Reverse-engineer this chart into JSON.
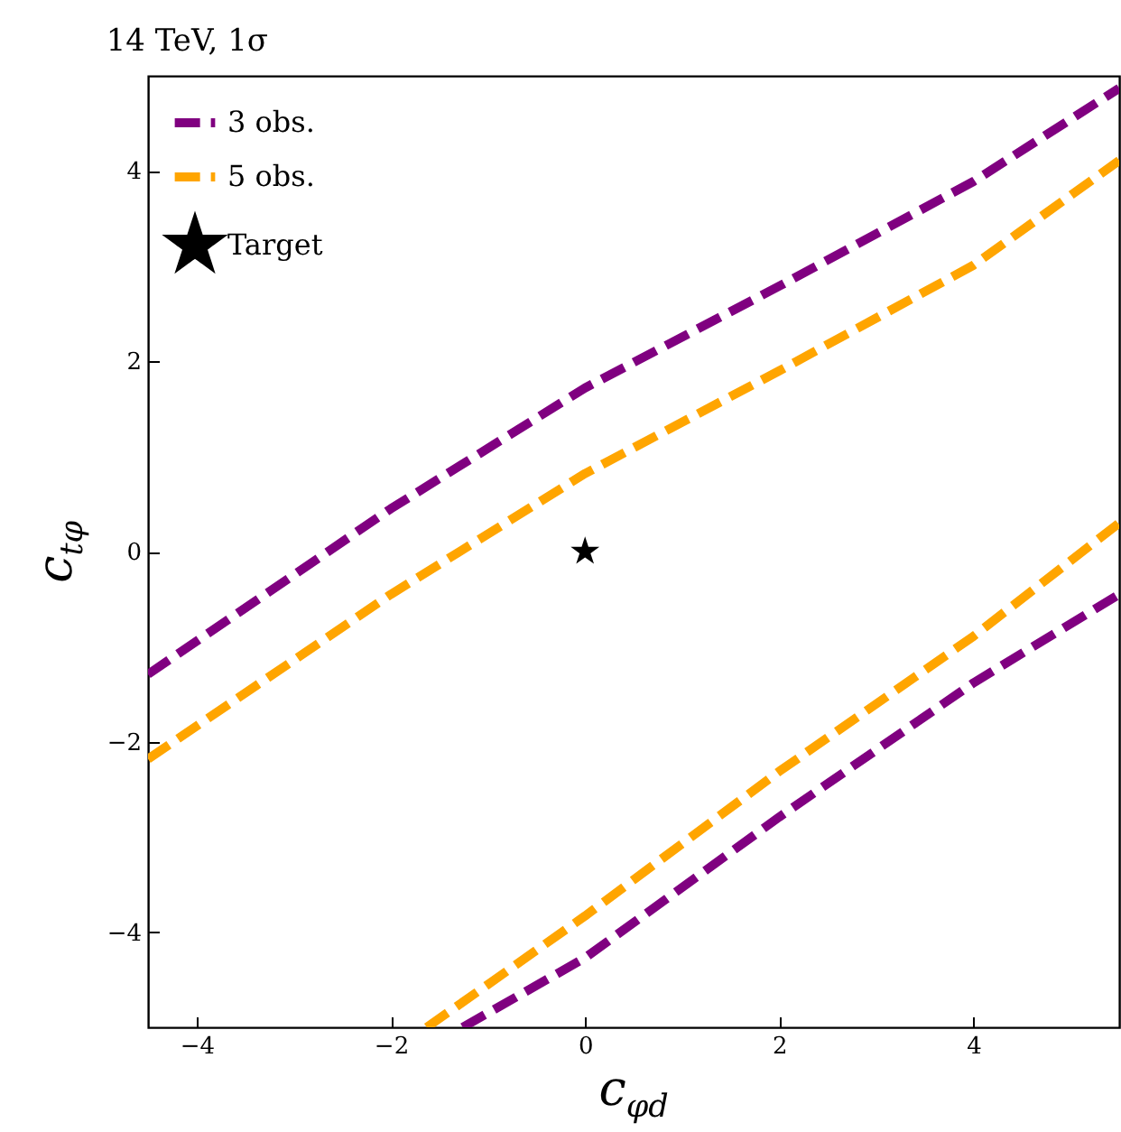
{
  "chart_data": {
    "type": "line",
    "title": "14 TeV, 1σ",
    "xlabel": "c$_{φd}$",
    "ylabel": "c$_{tφ}$",
    "xlim": [
      -4.5,
      5.5
    ],
    "xticks": [
      -4,
      -2,
      0,
      2,
      4
    ],
    "ylim": [
      -5,
      5
    ],
    "yticks": [
      -4,
      -2,
      0,
      2,
      4
    ],
    "grid": false,
    "legend": "top left",
    "line_style": "dashed",
    "series": [
      {
        "name": "3 obs.",
        "color": "#800080",
        "x": [
          -4.5,
          -2,
          0,
          2,
          4,
          5.5
        ],
        "values": [
          -1.29,
          0.45,
          1.72,
          2.79,
          3.89,
          4.87
        ]
      },
      {
        "name": "5 obs.",
        "color": "#ffa500",
        "x": [
          -4.5,
          -2,
          0,
          2,
          4,
          5.5
        ],
        "values": [
          -2.18,
          -0.45,
          0.82,
          1.9,
          3.01,
          4.11
        ]
      },
      {
        "color": "#800080",
        "x": [
          -1.26,
          -1,
          0,
          2,
          4,
          5.5
        ],
        "values": [
          -5,
          -4.85,
          -4.27,
          -2.79,
          -1.38,
          -0.45
        ]
      },
      {
        "color": "#ffa500",
        "x": [
          -1.63,
          -1,
          0,
          2,
          4,
          5.5
        ],
        "values": [
          -5,
          -4.55,
          -3.83,
          -2.31,
          -0.89,
          0.3
        ]
      },
      {
        "name": "Target",
        "type": "scatter",
        "marker": "star",
        "color": "#000000",
        "x": [
          0
        ],
        "values": [
          0
        ]
      }
    ]
  }
}
